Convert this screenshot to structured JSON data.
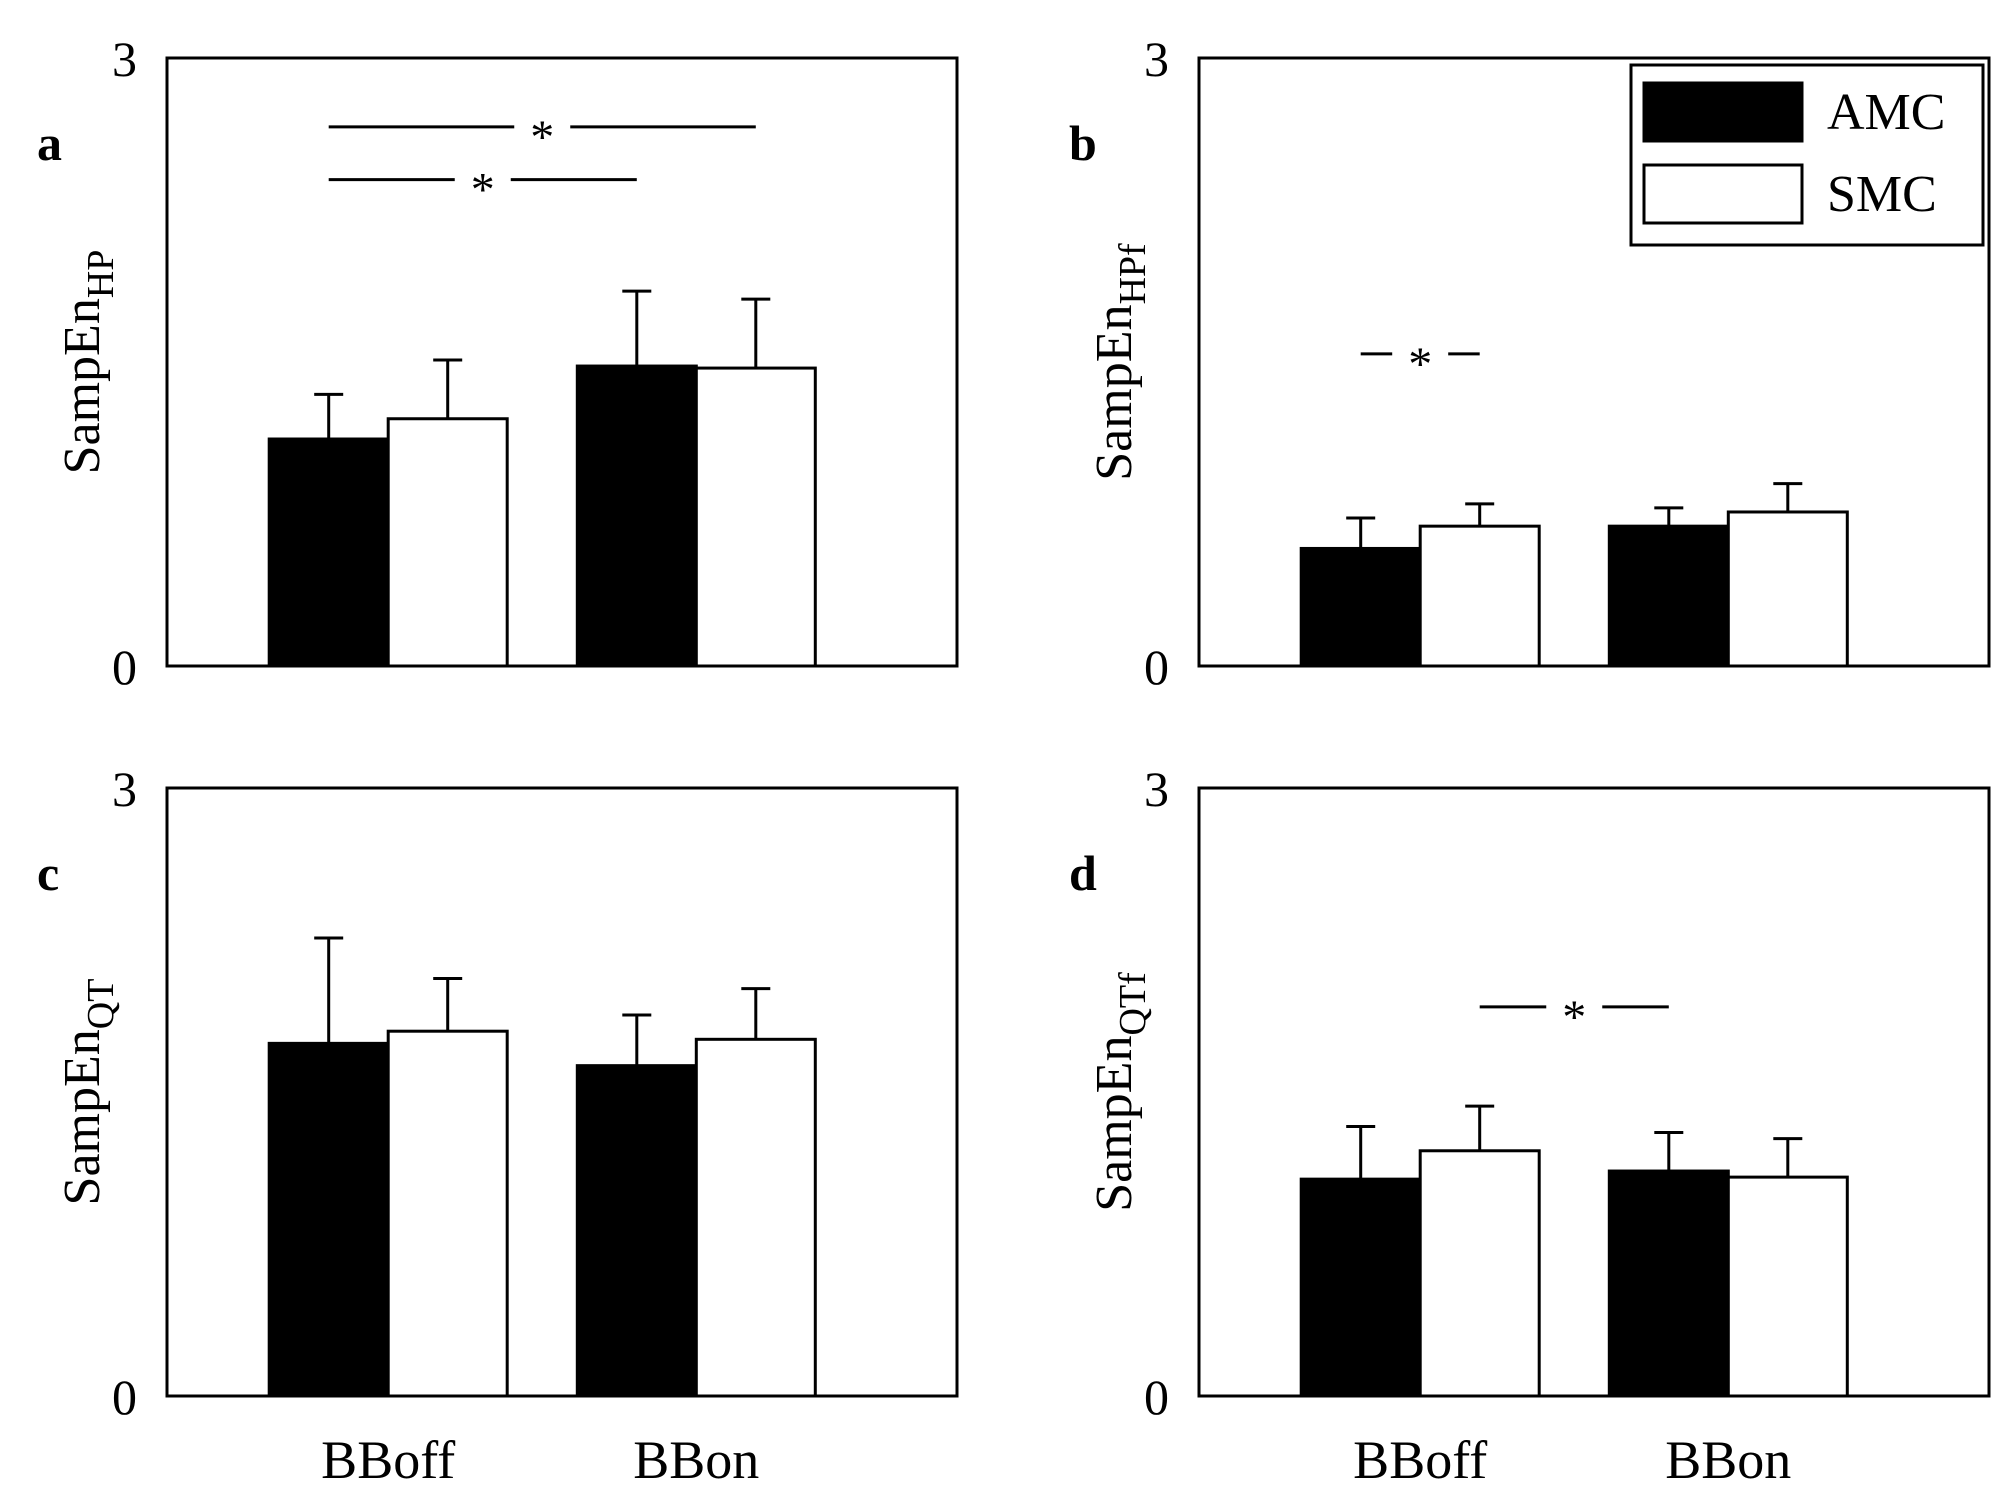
{
  "chart_data": [
    {
      "type": "bar",
      "panel": "a",
      "ylabel": "SampEn",
      "ylabel_sub": "HP",
      "ylim": [
        0,
        3
      ],
      "yticks": [
        "0",
        "3"
      ],
      "categories": [
        "BBoff",
        "BBon"
      ],
      "series": [
        {
          "name": "AMC",
          "values": [
            1.12,
            1.48
          ],
          "errors": [
            0.22,
            0.37
          ]
        },
        {
          "name": "SMC",
          "values": [
            1.22,
            1.47
          ],
          "errors": [
            0.29,
            0.34
          ]
        }
      ],
      "annotations": [
        {
          "label": "*",
          "y": 2.66,
          "from": [
            0,
            "AMC"
          ],
          "to": [
            1,
            "SMC"
          ]
        },
        {
          "label": "*",
          "y": 2.4,
          "from": [
            0,
            "AMC"
          ],
          "to": [
            1,
            "AMC"
          ]
        }
      ]
    },
    {
      "type": "bar",
      "panel": "b",
      "ylabel": "SampEn",
      "ylabel_sub": "HPf",
      "ylim": [
        0,
        3
      ],
      "yticks": [
        "0",
        "3"
      ],
      "categories": [
        "BBoff",
        "BBon"
      ],
      "series": [
        {
          "name": "AMC",
          "values": [
            0.58,
            0.69
          ],
          "errors": [
            0.15,
            0.09
          ]
        },
        {
          "name": "SMC",
          "values": [
            0.69,
            0.76
          ],
          "errors": [
            0.11,
            0.14
          ]
        }
      ],
      "annotations": [
        {
          "label": "*",
          "y": 1.54,
          "from": [
            0,
            "AMC"
          ],
          "to": [
            0,
            "SMC"
          ]
        }
      ],
      "legend": {
        "position": "top-right",
        "entries": [
          "AMC",
          "SMC"
        ]
      }
    },
    {
      "type": "bar",
      "panel": "c",
      "ylabel": "SampEn",
      "ylabel_sub": "QT",
      "ylim": [
        0,
        3
      ],
      "yticks": [
        "0",
        "3"
      ],
      "categories": [
        "BBoff",
        "BBon"
      ],
      "series": [
        {
          "name": "AMC",
          "values": [
            1.74,
            1.63
          ],
          "errors": [
            0.52,
            0.25
          ]
        },
        {
          "name": "SMC",
          "values": [
            1.8,
            1.76
          ],
          "errors": [
            0.26,
            0.25
          ]
        }
      ],
      "annotations": []
    },
    {
      "type": "bar",
      "panel": "d",
      "ylabel": "SampEn",
      "ylabel_sub": "QTf",
      "ylim": [
        0,
        3
      ],
      "yticks": [
        "0",
        "3"
      ],
      "categories": [
        "BBoff",
        "BBon"
      ],
      "series": [
        {
          "name": "AMC",
          "values": [
            1.07,
            1.11
          ],
          "errors": [
            0.26,
            0.19
          ]
        },
        {
          "name": "SMC",
          "values": [
            1.21,
            1.08
          ],
          "errors": [
            0.22,
            0.19
          ]
        }
      ],
      "annotations": [
        {
          "label": "*",
          "y": 1.92,
          "from": [
            0,
            "SMC"
          ],
          "to": [
            1,
            "AMC"
          ]
        }
      ]
    }
  ],
  "legend": {
    "entries": [
      {
        "label": "AMC",
        "color": "#000000"
      },
      {
        "label": "SMC",
        "color": "#ffffff"
      }
    ]
  },
  "x_tick_labels": [
    "BBoff",
    "BBon"
  ],
  "colors": {
    "AMC": "#000000",
    "SMC": "#ffffff",
    "stroke": "#000000"
  }
}
